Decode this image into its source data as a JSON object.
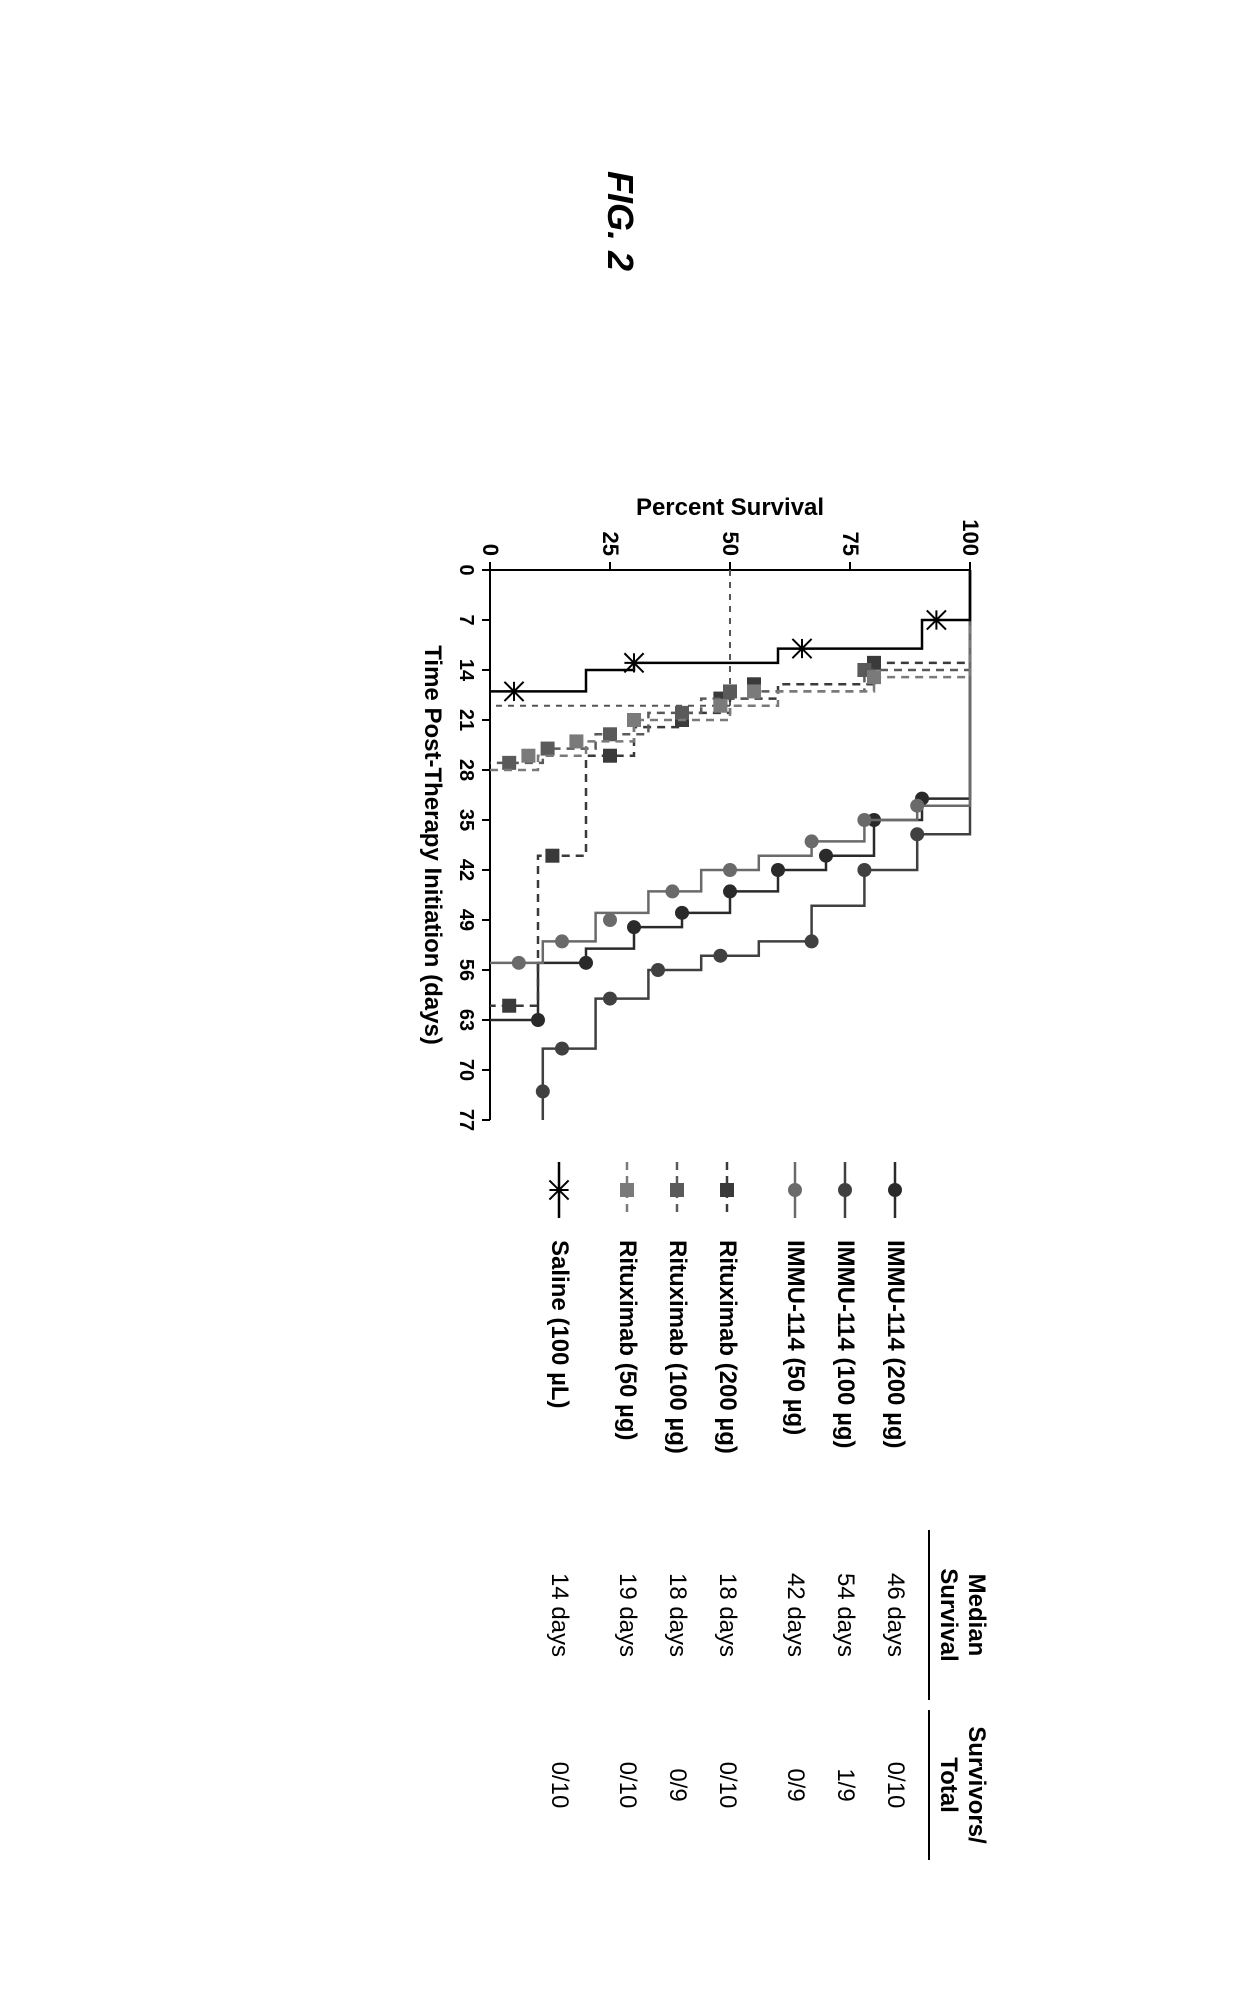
{
  "figure": {
    "title": "FIG. 2",
    "chart": {
      "type": "kaplan-meier",
      "xlabel": "Time Post-Therapy Initiation (days)",
      "ylabel": "Percent Survival",
      "xlim": [
        0,
        77
      ],
      "ylim": [
        0,
        100
      ],
      "xticks": [
        0,
        7,
        14,
        21,
        28,
        35,
        42,
        49,
        56,
        63,
        70,
        77
      ],
      "yticks": [
        0,
        25,
        50,
        75,
        100
      ],
      "axis_color": "#000000",
      "background_color": "#ffffff",
      "tick_fontsize": 20,
      "axis_title_fontsize": 24,
      "median_line": {
        "y": 50,
        "x_end": 19,
        "color": "#555555",
        "dash": "6,6",
        "width": 2
      },
      "series": [
        {
          "id": "immu114_200",
          "label": "IMMU-114 (200 µg)",
          "marker": "circle",
          "marker_size": 7,
          "line_dash": "none",
          "line_color": "#2a2a2a",
          "marker_color": "#2a2a2a",
          "line_width": 2.5,
          "median_survival": "46 days",
          "survivors": "0/10",
          "steps": [
            [
              0,
              100
            ],
            [
              32,
              100
            ],
            [
              32,
              90
            ],
            [
              35,
              90
            ],
            [
              35,
              80
            ],
            [
              40,
              80
            ],
            [
              40,
              70
            ],
            [
              42,
              70
            ],
            [
              42,
              60
            ],
            [
              45,
              60
            ],
            [
              45,
              50
            ],
            [
              48,
              50
            ],
            [
              48,
              40
            ],
            [
              50,
              40
            ],
            [
              50,
              30
            ],
            [
              53,
              30
            ],
            [
              53,
              20
            ],
            [
              55,
              20
            ],
            [
              55,
              10
            ],
            [
              63,
              10
            ],
            [
              63,
              0
            ]
          ],
          "markers": [
            [
              32,
              90
            ],
            [
              35,
              80
            ],
            [
              40,
              70
            ],
            [
              42,
              60
            ],
            [
              45,
              50
            ],
            [
              48,
              40
            ],
            [
              50,
              30
            ],
            [
              55,
              20
            ],
            [
              63,
              10
            ]
          ]
        },
        {
          "id": "immu114_100",
          "label": "IMMU-114 (100 µg)",
          "marker": "circle",
          "marker_size": 7,
          "line_dash": "none",
          "line_color": "#404040",
          "marker_color": "#404040",
          "line_width": 2.5,
          "median_survival": "54 days",
          "survivors": "1/9",
          "steps": [
            [
              0,
              100
            ],
            [
              37,
              100
            ],
            [
              37,
              89
            ],
            [
              42,
              89
            ],
            [
              42,
              78
            ],
            [
              47,
              78
            ],
            [
              47,
              67
            ],
            [
              52,
              67
            ],
            [
              52,
              56
            ],
            [
              54,
              56
            ],
            [
              54,
              44
            ],
            [
              56,
              44
            ],
            [
              56,
              33
            ],
            [
              60,
              33
            ],
            [
              60,
              22
            ],
            [
              67,
              22
            ],
            [
              67,
              11
            ],
            [
              77,
              11
            ]
          ],
          "markers": [
            [
              37,
              89
            ],
            [
              42,
              78
            ],
            [
              52,
              67
            ],
            [
              54,
              48
            ],
            [
              56,
              35
            ],
            [
              60,
              25
            ],
            [
              67,
              15
            ],
            [
              73,
              11
            ]
          ]
        },
        {
          "id": "immu114_50",
          "label": "IMMU-114 (50 µg)",
          "marker": "circle",
          "marker_size": 7,
          "line_dash": "none",
          "line_color": "#6a6a6a",
          "marker_color": "#6a6a6a",
          "line_width": 2.5,
          "median_survival": "42 days",
          "survivors": "0/9",
          "steps": [
            [
              0,
              100
            ],
            [
              33,
              100
            ],
            [
              33,
              89
            ],
            [
              35,
              89
            ],
            [
              35,
              78
            ],
            [
              38,
              78
            ],
            [
              38,
              67
            ],
            [
              40,
              67
            ],
            [
              40,
              56
            ],
            [
              42,
              56
            ],
            [
              42,
              44
            ],
            [
              45,
              44
            ],
            [
              45,
              33
            ],
            [
              48,
              33
            ],
            [
              48,
              22
            ],
            [
              52,
              22
            ],
            [
              52,
              11
            ],
            [
              55,
              11
            ],
            [
              55,
              0
            ]
          ],
          "markers": [
            [
              33,
              89
            ],
            [
              35,
              78
            ],
            [
              38,
              67
            ],
            [
              42,
              50
            ],
            [
              45,
              38
            ],
            [
              49,
              25
            ],
            [
              52,
              15
            ],
            [
              55,
              6
            ]
          ]
        },
        {
          "id": "ritux_200",
          "label": "Rituximab (200 µg)",
          "marker": "square",
          "marker_size": 7,
          "line_dash": "8,6",
          "line_color": "#3a3a3a",
          "marker_color": "#3a3a3a",
          "line_width": 2.5,
          "median_survival": "18 days",
          "survivors": "0/10",
          "steps": [
            [
              0,
              100
            ],
            [
              13,
              100
            ],
            [
              13,
              80
            ],
            [
              16,
              80
            ],
            [
              16,
              60
            ],
            [
              18,
              60
            ],
            [
              18,
              50
            ],
            [
              20,
              50
            ],
            [
              20,
              40
            ],
            [
              22,
              40
            ],
            [
              22,
              30
            ],
            [
              26,
              30
            ],
            [
              26,
              20
            ],
            [
              40,
              20
            ],
            [
              40,
              10
            ],
            [
              61,
              10
            ],
            [
              61,
              0
            ]
          ],
          "markers": [
            [
              13,
              80
            ],
            [
              16,
              55
            ],
            [
              18,
              48
            ],
            [
              21,
              40
            ],
            [
              26,
              25
            ],
            [
              40,
              13
            ],
            [
              61,
              4
            ]
          ]
        },
        {
          "id": "ritux_100",
          "label": "Rituximab (100 µg)",
          "marker": "square",
          "marker_size": 7,
          "line_dash": "8,6",
          "line_color": "#5a5a5a",
          "marker_color": "#5a5a5a",
          "line_width": 2.5,
          "median_survival": "18 days",
          "survivors": "0/9",
          "steps": [
            [
              0,
              100
            ],
            [
              14,
              100
            ],
            [
              14,
              78
            ],
            [
              17,
              78
            ],
            [
              17,
              56
            ],
            [
              18,
              56
            ],
            [
              18,
              44
            ],
            [
              20,
              44
            ],
            [
              20,
              33
            ],
            [
              23,
              33
            ],
            [
              23,
              22
            ],
            [
              25,
              22
            ],
            [
              25,
              11
            ],
            [
              27,
              11
            ],
            [
              27,
              0
            ]
          ],
          "markers": [
            [
              14,
              78
            ],
            [
              17,
              50
            ],
            [
              20,
              40
            ],
            [
              23,
              25
            ],
            [
              25,
              12
            ],
            [
              27,
              4
            ]
          ]
        },
        {
          "id": "ritux_50",
          "label": "Rituximab (50 µg)",
          "marker": "square",
          "marker_size": 7,
          "line_dash": "8,6",
          "line_color": "#7a7a7a",
          "marker_color": "#7a7a7a",
          "line_width": 2.5,
          "median_survival": "19 days",
          "survivors": "0/10",
          "steps": [
            [
              0,
              100
            ],
            [
              15,
              100
            ],
            [
              15,
              80
            ],
            [
              17,
              80
            ],
            [
              17,
              60
            ],
            [
              19,
              60
            ],
            [
              19,
              50
            ],
            [
              21,
              50
            ],
            [
              21,
              30
            ],
            [
              24,
              30
            ],
            [
              24,
              20
            ],
            [
              26,
              20
            ],
            [
              26,
              10
            ],
            [
              28,
              10
            ],
            [
              28,
              0
            ]
          ],
          "markers": [
            [
              15,
              80
            ],
            [
              17,
              55
            ],
            [
              19,
              48
            ],
            [
              21,
              30
            ],
            [
              24,
              18
            ],
            [
              26,
              8
            ]
          ]
        },
        {
          "id": "saline",
          "label": "Saline (100 µL)",
          "marker": "asterisk",
          "marker_size": 8,
          "line_dash": "none",
          "line_color": "#000000",
          "marker_color": "#000000",
          "line_width": 2.5,
          "median_survival": "14 days",
          "survivors": "0/10",
          "steps": [
            [
              0,
              100
            ],
            [
              7,
              100
            ],
            [
              7,
              90
            ],
            [
              11,
              90
            ],
            [
              11,
              60
            ],
            [
              13,
              60
            ],
            [
              13,
              30
            ],
            [
              14,
              30
            ],
            [
              14,
              20
            ],
            [
              17,
              20
            ],
            [
              17,
              0
            ]
          ],
          "markers": [
            [
              7,
              93
            ],
            [
              11,
              65
            ],
            [
              13,
              30
            ],
            [
              17,
              5
            ]
          ]
        }
      ]
    },
    "legend": {
      "headers": {
        "col3": "Median\nSurvival",
        "col4": "Survivors/\nTotal"
      }
    }
  }
}
